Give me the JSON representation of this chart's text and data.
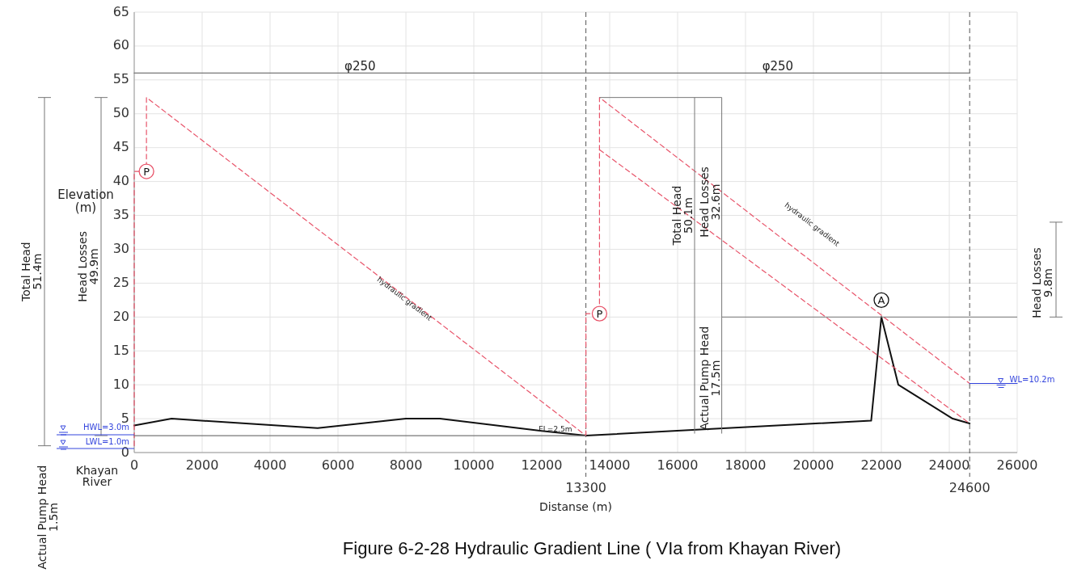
{
  "chart_data": {
    "type": "line",
    "title": "Figure 6-2-28    Hydraulic Gradient Line ( VIa from Khayan River)",
    "xlabel": "Distanse (m)",
    "ylabel": "Elevation\n(m)",
    "xlim": [
      0,
      26000
    ],
    "xticks": [
      0,
      2000,
      4000,
      6000,
      8000,
      10000,
      12000,
      14000,
      16000,
      18000,
      20000,
      22000,
      24000,
      26000
    ],
    "ylim": [
      0,
      65
    ],
    "yticks": [
      0,
      5,
      10,
      15,
      20,
      25,
      30,
      35,
      40,
      45,
      50,
      55,
      60,
      65
    ],
    "grid": true,
    "marker": "none",
    "series": [
      {
        "color": "#111111",
        "line_style": "solid",
        "x": [
          0,
          1100,
          5400,
          8000,
          9000,
          12000,
          13300,
          17000,
          21700,
          22000,
          22500,
          24100,
          24600
        ],
        "values": [
          4,
          5,
          3.6,
          5,
          5,
          3.2,
          2.5,
          3.5,
          4.7,
          20,
          10,
          5,
          4.3
        ]
      },
      {
        "color": "#e8546a",
        "line_style": "dashed",
        "x": [
          0,
          0,
          360,
          360,
          13300
        ],
        "values": [
          1.0,
          41.5,
          41.5,
          52.4,
          2.5
        ]
      },
      {
        "color": "#e8546a",
        "line_style": "dashed",
        "x": [
          13300,
          13300,
          13700,
          13700,
          24600
        ],
        "values": [
          2.5,
          20.5,
          20.5,
          52.4,
          10.2
        ]
      },
      {
        "color": "#e8546a",
        "line_style": "dashed",
        "x": [
          13700,
          24600
        ],
        "values": [
          44.7,
          4.3
        ]
      },
      {
        "color": "#777777",
        "line_style": "solid",
        "x": [
          0,
          24600
        ],
        "values": [
          56,
          56
        ]
      },
      {
        "color": "#777777",
        "line_style": "solid",
        "x": [
          0,
          13300
        ],
        "values": [
          2.5,
          2.5
        ]
      },
      {
        "color": "#3344dd",
        "line_style": "solid",
        "x": [
          24600,
          26000
        ],
        "values": [
          10.2,
          10.2
        ]
      }
    ],
    "ref_lines": [
      {
        "axis": "x",
        "value": 13300,
        "label": "13300",
        "color": "#555555",
        "line_style": "dashed"
      },
      {
        "axis": "x",
        "value": 24600,
        "label": "24600",
        "color": "#555555",
        "line_style": "dashed"
      }
    ],
    "annotations": [
      {
        "text": "φ250",
        "x": 6650,
        "y": 56
      },
      {
        "text": "φ250",
        "x": 18950,
        "y": 56
      },
      "hydraulic gradient",
      "hydraulic gradient",
      {
        "text": "EL=2.5m",
        "x": 12400,
        "y": 2.5
      },
      {
        "text": "Total Head\n50.1m",
        "x": 16500,
        "y": 35
      },
      "Head Losses\n32.6m",
      "Actual Pump Head\n17.5m",
      {
        "text": "WL=10.2m",
        "x": 25300,
        "y": 10.2
      },
      {
        "text": "P",
        "x": 360,
        "y": 41.5
      },
      {
        "text": "P",
        "x": 13700,
        "y": 20.5
      },
      {
        "text": "A",
        "x": 22000,
        "y": 22.5
      },
      "Total Head\n51.4m",
      "Head Losses\n49.9m",
      "Actual Pump Head\n1.5m",
      "HWL=3.0m",
      "LWL=1.0m",
      "Khayan\nRiver",
      "Head Losses\n9.8m"
    ]
  }
}
